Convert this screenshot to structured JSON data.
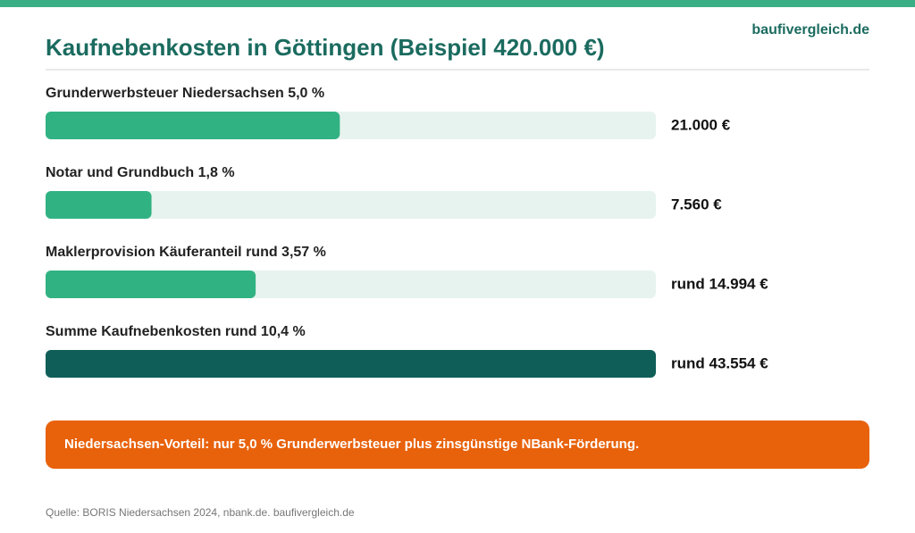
{
  "chart_data": {
    "type": "bar",
    "orientation": "horizontal",
    "title": "Kaufnebenkosten in Göttingen (Beispiel 420.000 €)",
    "brand": "baufivergleich.de",
    "categories": [
      "Grunderwerbsteuer Niedersachsen 5,0 %",
      "Notar und Grundbuch 1,8 %",
      "Maklerprovision Käuferanteil rund 3,57 %",
      "Summe Kaufnebenkosten rund 10,4 %"
    ],
    "values": [
      21000,
      7560,
      14994,
      43554
    ],
    "value_labels": [
      "21.000 €",
      "7.560 €",
      "rund 14.994 €",
      "rund 43.554 €"
    ],
    "colors": [
      "#31b283",
      "#31b283",
      "#31b283",
      "#0f5f58"
    ],
    "track_color": "#e7f3ee",
    "callout": "Niedersachsen-Vorteil: nur 5,0 % Grunderwerbsteuer plus zinsgünstige NBank-Förderung.",
    "callout_color": "#e8620c",
    "source": "Quelle: BORIS Niedersachsen 2024, nbank.de. baufivergleich.de"
  }
}
